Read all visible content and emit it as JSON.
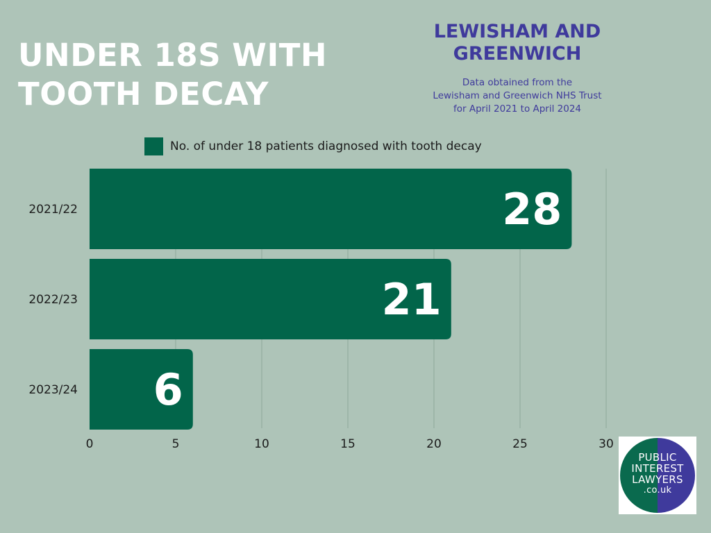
{
  "title": {
    "line1": "UNDER 18S WITH",
    "line2": "TOOTH DECAY"
  },
  "region": {
    "line1": "LEWISHAM AND",
    "line2": "GREENWICH"
  },
  "source": {
    "line1": "Data obtained from the",
    "line2": "Lewisham and Greenwich NHS Trust",
    "line3": "for April 2021 to April 2024"
  },
  "logo": {
    "line1": "PUBLIC",
    "line2": "INTEREST",
    "line3": "LAWYERS",
    "line4": ".co.uk"
  },
  "colors": {
    "bar": "#02654a",
    "background": "#aec4b8",
    "accent": "#3f3a9c"
  },
  "chart_data": {
    "type": "bar",
    "orientation": "horizontal",
    "categories": [
      "2021/22",
      "2022/23",
      "2023/24"
    ],
    "series": [
      {
        "name": "No. of under 18 patients diagnosed with tooth decay",
        "values": [
          28,
          21,
          6
        ]
      }
    ],
    "xlim": [
      0,
      30
    ],
    "xticks": [
      0,
      5,
      10,
      15,
      20,
      25,
      30
    ],
    "grid": true,
    "legend": "top-center"
  }
}
